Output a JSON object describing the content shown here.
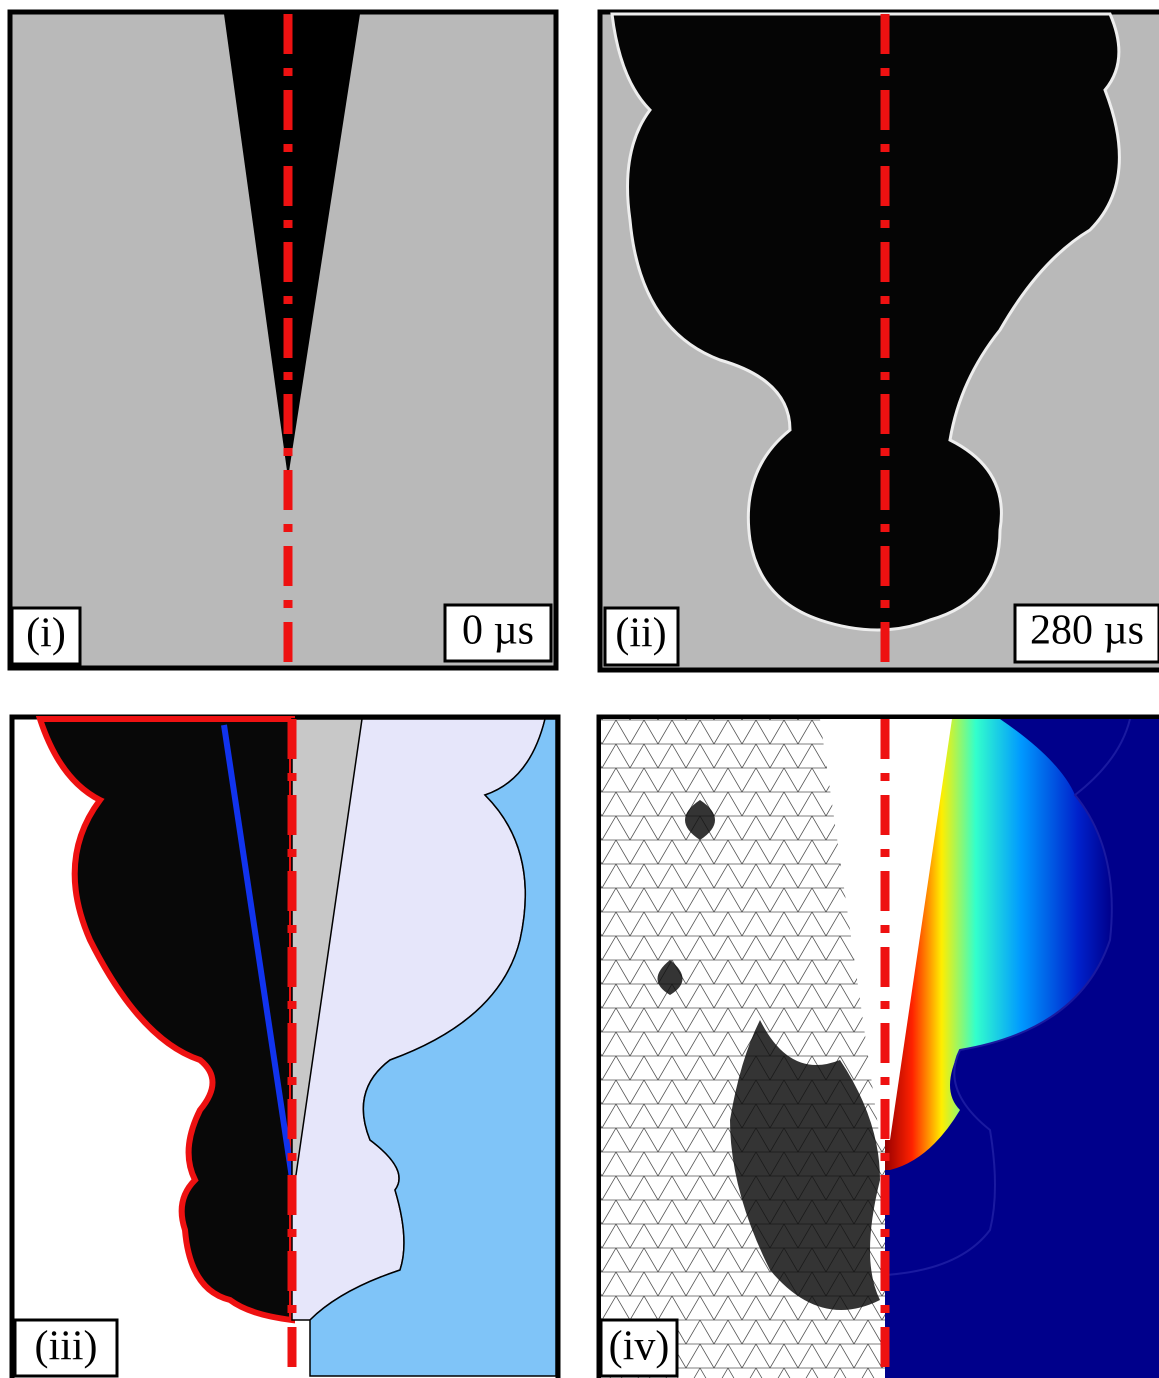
{
  "panels": [
    {
      "label": "(i)",
      "time": "0 µs"
    },
    {
      "label": "(ii)",
      "time": "280 µs"
    },
    {
      "label": "(iii)"
    },
    {
      "label": "(iv)"
    }
  ]
}
